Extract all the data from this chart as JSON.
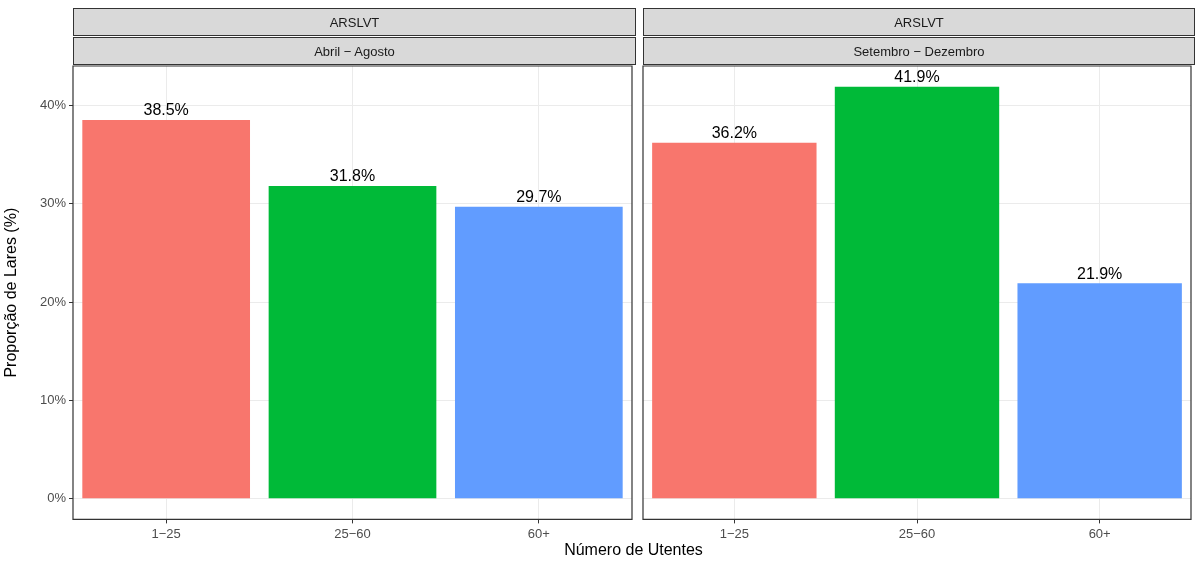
{
  "chart_data": [
    {
      "type": "bar",
      "title": "ARSLVT",
      "subtitle": "Abril − Agosto",
      "xlabel": "Número de Utentes",
      "ylabel": "Proporção de Lares (%)",
      "categories": [
        "1−25",
        "25−60",
        "60+"
      ],
      "values": [
        38.5,
        31.8,
        29.7
      ],
      "colors": [
        "#f8766d",
        "#00ba38",
        "#619cff"
      ],
      "value_labels": [
        "38.5%",
        "31.8%",
        "29.7%"
      ],
      "ylim": [
        -2.1,
        44
      ],
      "yticks": [
        {
          "value": 0,
          "label": "0%"
        },
        {
          "value": 10,
          "label": "10%"
        },
        {
          "value": 20,
          "label": "20%"
        },
        {
          "value": 30,
          "label": "30%"
        },
        {
          "value": 40,
          "label": "40%"
        }
      ],
      "grid": true
    },
    {
      "type": "bar",
      "title": "ARSLVT",
      "subtitle": "Setembro − Dezembro",
      "categories": [
        "1−25",
        "25−60",
        "60+"
      ],
      "values": [
        36.2,
        41.9,
        21.9
      ],
      "colors": [
        "#f8766d",
        "#00ba38",
        "#619cff"
      ],
      "value_labels": [
        "36.2%",
        "41.9%",
        "21.9%"
      ],
      "ylim": [
        -2.1,
        44
      ],
      "yticks": [
        {
          "value": 0,
          "label": null
        },
        {
          "value": 10,
          "label": null
        },
        {
          "value": 20,
          "label": null
        },
        {
          "value": 30,
          "label": null
        },
        {
          "value": 40,
          "label": null
        }
      ],
      "grid": true,
      "tick_labels": "x"
    }
  ]
}
